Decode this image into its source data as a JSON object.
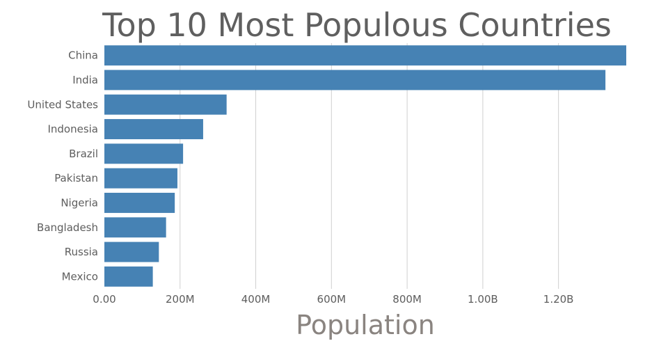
{
  "chart_data": {
    "type": "bar",
    "orientation": "horizontal",
    "title": "Top 10 Most Populous Countries",
    "xlabel": "Population",
    "ylabel": "",
    "categories": [
      "China",
      "India",
      "United States",
      "Indonesia",
      "Brazil",
      "Pakistan",
      "Nigeria",
      "Bangladesh",
      "Russia",
      "Mexico"
    ],
    "values": [
      1379000000,
      1324000000,
      323000000,
      261000000,
      208000000,
      193000000,
      186000000,
      163000000,
      144000000,
      128000000
    ],
    "xlim": [
      0,
      1379000000
    ],
    "xticks": [
      0,
      200000000,
      400000000,
      600000000,
      800000000,
      1000000000,
      1200000000
    ],
    "xtick_labels": [
      "0.00",
      "200M",
      "400M",
      "600M",
      "800M",
      "1.00B",
      "1.20B"
    ],
    "grid": true,
    "bar_color": "#4682b4",
    "gridline_color": "#cfcfcf",
    "title_color": "#5f5f5f",
    "axis_label_color": "#8a8480",
    "tick_label_color": "#5d5d5d"
  }
}
